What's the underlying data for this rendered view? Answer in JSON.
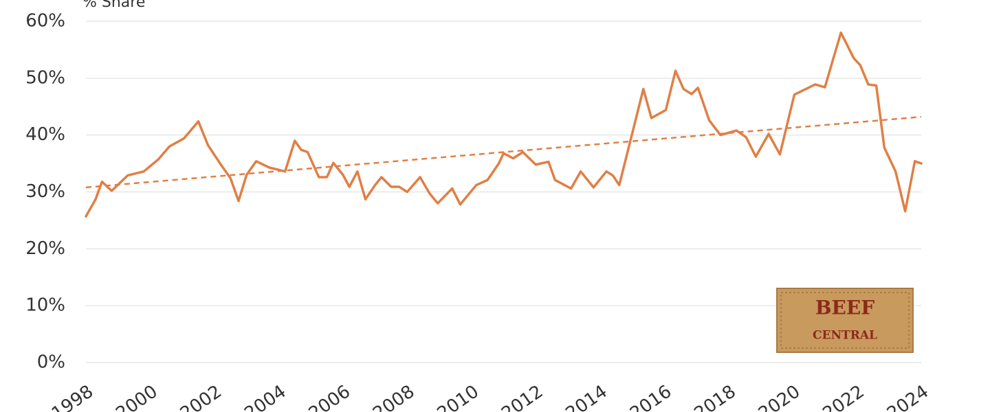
{
  "chart_data": {
    "type": "line",
    "y_label": "% Share",
    "x": [
      1998.0,
      1998.3,
      1998.5,
      1998.8,
      1999.3,
      1999.8,
      2000.25,
      2000.6,
      2001.05,
      2001.5,
      2001.8,
      2002.2,
      2002.5,
      2002.75,
      2003.0,
      2003.3,
      2003.7,
      2004.2,
      2004.5,
      2004.7,
      2004.9,
      2005.25,
      2005.5,
      2005.7,
      2006.0,
      2006.2,
      2006.45,
      2006.7,
      2007.0,
      2007.2,
      2007.5,
      2007.75,
      2008.0,
      2008.4,
      2008.7,
      2008.95,
      2009.4,
      2009.65,
      2010.15,
      2010.5,
      2010.85,
      2011.0,
      2011.3,
      2011.6,
      2012.0,
      2012.4,
      2012.6,
      2013.1,
      2013.4,
      2013.8,
      2014.2,
      2014.4,
      2014.6,
      2015.0,
      2015.35,
      2015.6,
      2016.05,
      2016.35,
      2016.6,
      2016.85,
      2017.05,
      2017.4,
      2017.75,
      2018.25,
      2018.55,
      2018.85,
      2019.25,
      2019.6,
      2020.05,
      2020.7,
      2021.0,
      2021.5,
      2021.9,
      2022.1,
      2022.35,
      2022.6,
      2022.85,
      2023.2,
      2023.5,
      2023.8,
      2024.0
    ],
    "values": [
      25.7,
      28.7,
      31.8,
      30.2,
      32.9,
      33.6,
      35.7,
      38.0,
      39.4,
      42.4,
      38.2,
      34.8,
      32.4,
      28.4,
      33.0,
      35.4,
      34.3,
      33.6,
      39.0,
      37.4,
      37.0,
      32.6,
      32.6,
      35.1,
      33.0,
      30.9,
      33.6,
      28.7,
      31.2,
      32.6,
      30.9,
      30.9,
      30.0,
      32.6,
      29.7,
      28.0,
      30.6,
      27.8,
      31.2,
      32.1,
      35.0,
      36.8,
      35.9,
      37.0,
      34.8,
      35.3,
      32.1,
      30.6,
      33.6,
      30.8,
      33.6,
      32.9,
      31.2,
      40.2,
      48.1,
      43.0,
      44.4,
      51.3,
      48.1,
      47.2,
      48.3,
      42.6,
      40.0,
      40.8,
      39.6,
      36.2,
      40.2,
      36.6,
      47.1,
      48.9,
      48.4,
      58.0,
      53.5,
      52.3,
      48.9,
      48.7,
      37.8,
      33.6,
      26.6,
      35.4,
      35.0
    ],
    "color": "#e07f45",
    "trend": {
      "x": [
        1998,
        2024
      ],
      "values": [
        30.8,
        43.2
      ],
      "color": "#e07f45",
      "dashed": true
    },
    "xlim": [
      1998,
      2024
    ],
    "xticks": [
      1998,
      2000,
      2002,
      2004,
      2006,
      2008,
      2010,
      2012,
      2014,
      2016,
      2018,
      2020,
      2022,
      2024
    ],
    "ylim": [
      0,
      60
    ],
    "yticks": [
      {
        "value": 0,
        "label": "0%"
      },
      {
        "value": 10,
        "label": "10%"
      },
      {
        "value": 20,
        "label": "20%"
      },
      {
        "value": 30,
        "label": "30%"
      },
      {
        "value": 40,
        "label": "40%"
      },
      {
        "value": 50,
        "label": "50%"
      },
      {
        "value": 60,
        "label": "60%"
      }
    ],
    "grid": true,
    "logo": {
      "line1": "BEEF",
      "line2": "CENTRAL"
    }
  }
}
